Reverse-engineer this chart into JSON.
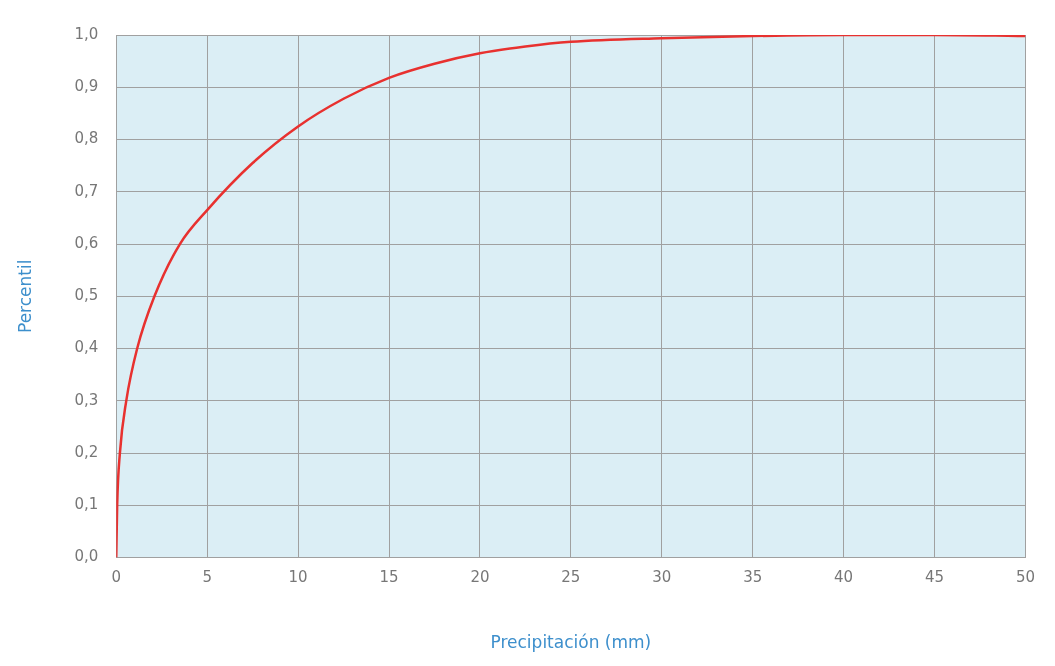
{
  "chart_data": {
    "type": "line",
    "xlabel": "Precipitación (mm)",
    "ylabel": "Percentil",
    "series": [
      {
        "color": "#e8312f",
        "x": [
          0,
          0.05,
          0.2,
          0.55,
          1.15,
          2.1,
          3.5,
          5,
          7.5,
          10,
          12.5,
          15,
          17.5,
          20,
          22.5,
          25,
          30,
          35,
          40,
          45,
          50
        ],
        "values": [
          0,
          0.1,
          0.2,
          0.3,
          0.4,
          0.5,
          0.6,
          0.665,
          0.755,
          0.825,
          0.878,
          0.918,
          0.945,
          0.965,
          0.978,
          0.987,
          0.994,
          0.998,
          1.0,
          1.0,
          0.998
        ]
      }
    ],
    "xlim": [
      0,
      50
    ],
    "xticks": [
      0,
      5,
      10,
      15,
      20,
      25,
      30,
      35,
      40,
      45,
      50
    ],
    "ylim": [
      0,
      1
    ],
    "yticks": [
      {
        "value": 0,
        "label": "0,0"
      },
      {
        "value": 0.1,
        "label": "0,1"
      },
      {
        "value": 0.2,
        "label": "0,2"
      },
      {
        "value": 0.3,
        "label": "0,3"
      },
      {
        "value": 0.4,
        "label": "0,4"
      },
      {
        "value": 0.5,
        "label": "0,5"
      },
      {
        "value": 0.6,
        "label": "0,6"
      },
      {
        "value": 0.7,
        "label": "0,7"
      },
      {
        "value": 0.8,
        "label": "0,8"
      },
      {
        "value": 0.9,
        "label": "0,9"
      },
      {
        "value": 1,
        "label": "1,0"
      }
    ],
    "grid": true,
    "marker": "none",
    "line_style": "solid",
    "legend": false
  }
}
